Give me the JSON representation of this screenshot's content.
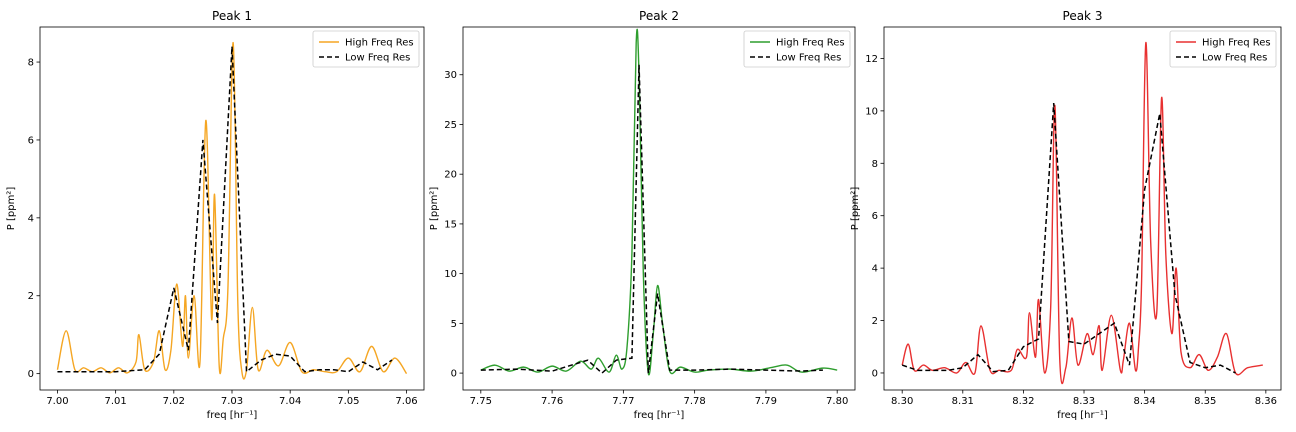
{
  "chart_data": [
    {
      "type": "line",
      "title": "Peak 1",
      "xlabel": "freq [hr⁻¹]",
      "ylabel": "P [ppm²]",
      "xlim": [
        6.997,
        7.063
      ],
      "ylim": [
        -0.42,
        8.9
      ],
      "xticks": [
        7.0,
        7.01,
        7.02,
        7.03,
        7.04,
        7.05,
        7.06
      ],
      "xtick_labels": [
        "7.00",
        "7.01",
        "7.02",
        "7.03",
        "7.04",
        "7.05",
        "7.06"
      ],
      "yticks": [
        0,
        2,
        4,
        6,
        8
      ],
      "ytick_labels": [
        "0",
        "2",
        "4",
        "6",
        "8"
      ],
      "legend": "top-right",
      "series": [
        {
          "name": "High Freq Res",
          "color": "#f5a623",
          "style": "solid",
          "x": [
            7.0,
            7.0015,
            7.003,
            7.0045,
            7.006,
            7.0075,
            7.009,
            7.0105,
            7.012,
            7.0135,
            7.014,
            7.015,
            7.0165,
            7.0175,
            7.0185,
            7.0195,
            7.0205,
            7.0215,
            7.022,
            7.0225,
            7.0235,
            7.0245,
            7.0255,
            7.0265,
            7.027,
            7.0278,
            7.0285,
            7.0293,
            7.0302,
            7.031,
            7.0317,
            7.0325,
            7.0335,
            7.0345,
            7.036,
            7.038,
            7.04,
            7.042,
            7.044,
            7.046,
            7.048,
            7.05,
            7.052,
            7.054,
            7.056,
            7.058,
            7.06
          ],
          "y": [
            0.1,
            1.1,
            0.1,
            0.15,
            0.05,
            0.15,
            0.02,
            0.15,
            0.02,
            0.3,
            1.0,
            0.1,
            0.3,
            1.1,
            0.1,
            0.6,
            2.3,
            0.7,
            2.0,
            0.4,
            2.0,
            0.3,
            6.5,
            1.4,
            4.6,
            0.2,
            0.9,
            2.2,
            8.5,
            1.8,
            0.05,
            0.1,
            1.7,
            0.1,
            0.6,
            0.2,
            0.8,
            0.05,
            0.1,
            0.05,
            0.05,
            0.4,
            0.05,
            0.7,
            0.05,
            0.4,
            0.0
          ]
        },
        {
          "name": "Low Freq Res",
          "color": "#000000",
          "style": "dashed",
          "x": [
            7.0,
            7.005,
            7.01,
            7.015,
            7.0175,
            7.02,
            7.0225,
            7.025,
            7.0275,
            7.03,
            7.0325,
            7.035,
            7.0375,
            7.04,
            7.0425,
            7.045,
            7.0475,
            7.05,
            7.0525,
            7.055,
            7.0575
          ],
          "y": [
            0.05,
            0.05,
            0.05,
            0.1,
            0.5,
            2.2,
            0.6,
            6.0,
            1.3,
            8.4,
            0.05,
            0.35,
            0.5,
            0.45,
            0.05,
            0.1,
            0.1,
            0.05,
            0.3,
            0.1,
            0.35
          ]
        }
      ]
    },
    {
      "type": "line",
      "title": "Peak 2",
      "xlabel": "freq [hr⁻¹]",
      "ylabel": "P [ppm²]",
      "xlim": [
        7.7475,
        7.8025
      ],
      "ylim": [
        -1.7,
        34.8
      ],
      "xticks": [
        7.75,
        7.76,
        7.77,
        7.78,
        7.79,
        7.8
      ],
      "xtick_labels": [
        "7.75",
        "7.76",
        "7.77",
        "7.78",
        "7.79",
        "7.80"
      ],
      "yticks": [
        0,
        5,
        10,
        15,
        20,
        25,
        30
      ],
      "ytick_labels": [
        "0",
        "5",
        "10",
        "15",
        "20",
        "25",
        "30"
      ],
      "legend": "top-right",
      "series": [
        {
          "name": "High Freq Res",
          "color": "#2e9e2e",
          "style": "solid",
          "x": [
            7.75,
            7.752,
            7.754,
            7.756,
            7.758,
            7.76,
            7.762,
            7.764,
            7.7655,
            7.7665,
            7.768,
            7.769,
            7.7698,
            7.7705,
            7.7712,
            7.7718,
            7.7722,
            7.7728,
            7.7735,
            7.7742,
            7.7748,
            7.7755,
            7.7765,
            7.778,
            7.78,
            7.782,
            7.785,
            7.788,
            7.791,
            7.793,
            7.795,
            7.798,
            7.8
          ],
          "y": [
            0.3,
            0.8,
            0.2,
            0.6,
            0.1,
            0.7,
            0.2,
            1.2,
            0.4,
            1.5,
            0.1,
            1.8,
            0.4,
            2.5,
            12.0,
            33.2,
            30.0,
            10.0,
            0.0,
            4.0,
            8.8,
            5.0,
            0.2,
            0.6,
            0.1,
            0.3,
            0.4,
            0.2,
            0.6,
            0.8,
            0.1,
            0.5,
            0.3
          ]
        },
        {
          "name": "Low Freq Res",
          "color": "#000000",
          "style": "dashed",
          "x": [
            7.75,
            7.755,
            7.76,
            7.765,
            7.767,
            7.769,
            7.7712,
            7.7722,
            7.7735,
            7.7748,
            7.7765,
            7.78,
            7.785,
            7.79,
            7.795,
            7.798
          ],
          "y": [
            0.3,
            0.4,
            0.2,
            1.3,
            0.0,
            1.3,
            1.5,
            31.0,
            0.0,
            8.0,
            0.3,
            0.3,
            0.4,
            0.3,
            0.2,
            0.3
          ]
        }
      ]
    },
    {
      "type": "line",
      "title": "Peak 3",
      "xlabel": "freq [hr⁻¹]",
      "ylabel": "P [ppm²]",
      "xlim": [
        8.297,
        8.3625
      ],
      "ylim": [
        -0.65,
        13.2
      ],
      "xticks": [
        8.3,
        8.31,
        8.32,
        8.33,
        8.34,
        8.35,
        8.36
      ],
      "xtick_labels": [
        "8.30",
        "8.31",
        "8.32",
        "8.33",
        "8.34",
        "8.35",
        "8.36"
      ],
      "yticks": [
        0,
        2,
        4,
        6,
        8,
        10,
        12
      ],
      "ytick_labels": [
        "0",
        "2",
        "4",
        "6",
        "8",
        "10",
        "12"
      ],
      "legend": "top-right",
      "series": [
        {
          "name": "High Freq Res",
          "color": "#e83030",
          "style": "solid",
          "x": [
            8.3,
            8.301,
            8.302,
            8.3035,
            8.305,
            8.307,
            8.309,
            8.3105,
            8.312,
            8.313,
            8.3145,
            8.316,
            8.318,
            8.319,
            8.3205,
            8.321,
            8.322,
            8.3225,
            8.3235,
            8.3245,
            8.3252,
            8.326,
            8.327,
            8.328,
            8.329,
            8.3305,
            8.3315,
            8.3325,
            8.333,
            8.3345,
            8.336,
            8.3365,
            8.3375,
            8.3385,
            8.339,
            8.3395,
            8.3402,
            8.341,
            8.342,
            8.3428,
            8.3435,
            8.3445,
            8.3452,
            8.346,
            8.3475,
            8.349,
            8.3505,
            8.352,
            8.3535,
            8.355,
            8.357,
            8.3595
          ],
          "y": [
            0.3,
            1.1,
            0.1,
            0.3,
            0.1,
            0.2,
            0.0,
            0.4,
            0.0,
            1.8,
            0.1,
            0.1,
            0.1,
            0.9,
            0.6,
            2.3,
            0.6,
            2.8,
            0.0,
            2.5,
            10.2,
            0.5,
            0.2,
            2.1,
            0.3,
            1.5,
            0.7,
            1.8,
            0.1,
            2.2,
            0.1,
            0.5,
            1.9,
            0.1,
            1.0,
            3.5,
            12.6,
            5.0,
            2.3,
            10.5,
            4.5,
            1.5,
            4.0,
            0.8,
            0.2,
            0.7,
            0.1,
            0.6,
            1.5,
            0.0,
            0.2,
            0.3
          ]
        },
        {
          "name": "Low Freq Res",
          "color": "#000000",
          "style": "dashed",
          "x": [
            8.3,
            8.3025,
            8.305,
            8.3075,
            8.31,
            8.3125,
            8.315,
            8.3175,
            8.32,
            8.3225,
            8.325,
            8.3275,
            8.33,
            8.3325,
            8.335,
            8.3375,
            8.34,
            8.3425,
            8.345,
            8.3475,
            8.35,
            8.3525,
            8.355
          ],
          "y": [
            0.3,
            0.1,
            0.1,
            0.1,
            0.2,
            0.7,
            0.05,
            0.1,
            1.0,
            1.3,
            10.3,
            1.2,
            1.1,
            1.5,
            1.9,
            0.3,
            7.0,
            9.9,
            3.0,
            0.4,
            0.2,
            0.3,
            0.0
          ]
        }
      ]
    }
  ]
}
